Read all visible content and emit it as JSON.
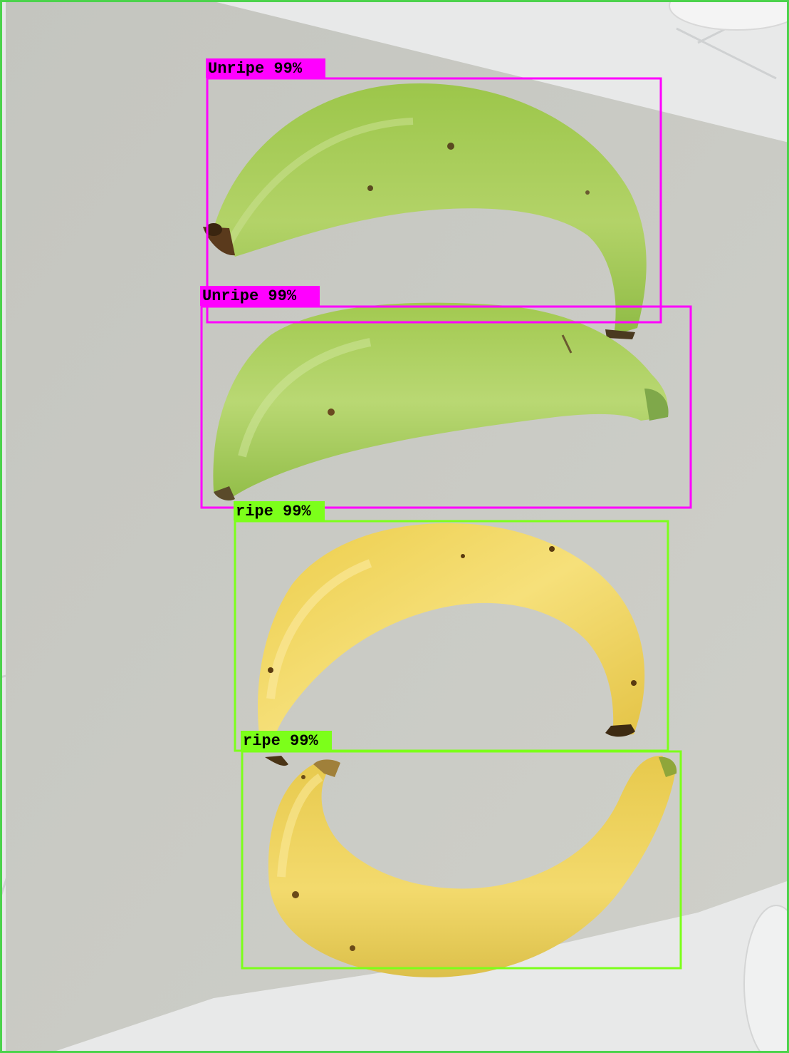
{
  "image": {
    "subject": "four bananas on paper with object-detection boxes",
    "colors": {
      "frame": "#4cd34c",
      "unripe_box": "#ff00ff",
      "ripe_box": "#7cff1a",
      "paper": "#c9cac4",
      "marble": "#e9eaea",
      "unripe_peel": "#a6cc55",
      "ripe_peel": "#f0d55a"
    }
  },
  "detections": [
    {
      "label": "Unripe 99%",
      "class": "unripe",
      "color": "#ff00ff"
    },
    {
      "label": "Unripe 99%",
      "class": "unripe",
      "color": "#ff00ff"
    },
    {
      "label": "ripe 99%",
      "class": "ripe",
      "color": "#7cff1a"
    },
    {
      "label": "ripe 99%",
      "class": "ripe",
      "color": "#7cff1a"
    }
  ]
}
